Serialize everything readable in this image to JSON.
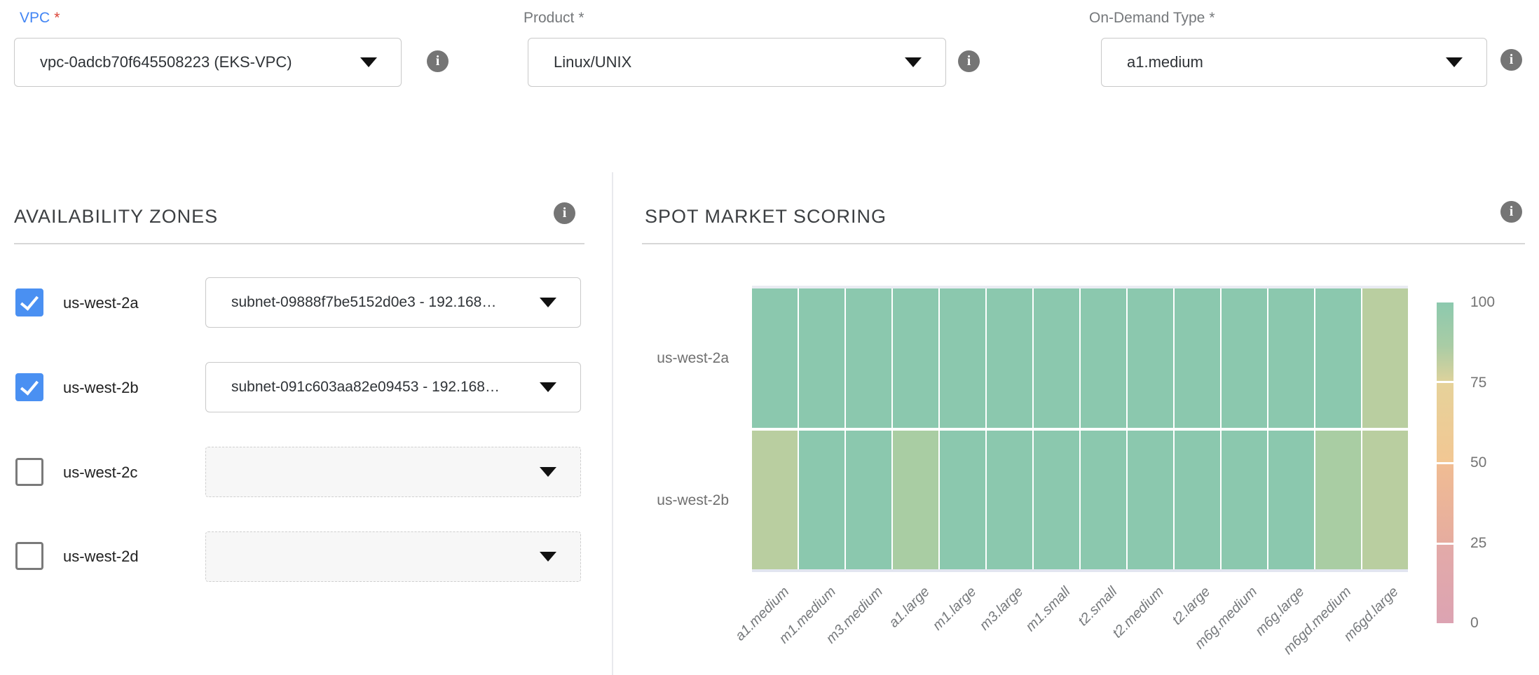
{
  "fields": {
    "vpc": {
      "label": "VPC",
      "required_mark": "*",
      "value": "vpc-0adcb70f645508223 (EKS-VPC)"
    },
    "product": {
      "label": "Product",
      "required_mark": "*",
      "value": "Linux/UNIX"
    },
    "on_demand_type": {
      "label": "On-Demand Type",
      "required_mark": "*",
      "value": "a1.medium"
    }
  },
  "availability_zones": {
    "title": "AVAILABILITY ZONES",
    "zones": [
      {
        "label": "us-west-2a",
        "checked": true,
        "subnet": "subnet-09888f7be5152d0e3 - 192.168…"
      },
      {
        "label": "us-west-2b",
        "checked": true,
        "subnet": "subnet-091c603aa82e09453 - 192.168…"
      },
      {
        "label": "us-west-2c",
        "checked": false,
        "subnet": ""
      },
      {
        "label": "us-west-2d",
        "checked": false,
        "subnet": ""
      }
    ]
  },
  "spot_market_scoring": {
    "title": "SPOT MARKET SCORING"
  },
  "colors": {
    "label_blue": "#4285f4",
    "required_red": "#db4437",
    "checkbox_blue": "#4a90f2",
    "score_high_teal": "#8BC8AE",
    "score_mid_green": "#A9CDA3",
    "score_low_olive": "#B9CEA0"
  },
  "chart_data": {
    "type": "heatmap",
    "title": "SPOT MARKET SCORING",
    "x_categories": [
      "a1.medium",
      "m1.medium",
      "m3.medium",
      "a1.large",
      "m1.large",
      "m3.large",
      "m1.small",
      "t2.small",
      "t2.medium",
      "t2.large",
      "m6g.medium",
      "m6g.large",
      "m6gd.medium",
      "m6gd.large"
    ],
    "y_categories": [
      "us-west-2a",
      "us-west-2b"
    ],
    "value_range": [
      0,
      100
    ],
    "grid": "white-separators",
    "legend_position": "right",
    "series": [
      {
        "name": "us-west-2a",
        "scores": [
          98,
          98,
          98,
          98,
          98,
          98,
          98,
          98,
          98,
          98,
          98,
          98,
          98,
          80
        ],
        "colors": [
          "#8BC8AE",
          "#8BC8AE",
          "#8BC8AE",
          "#8BC8AE",
          "#8BC8AE",
          "#8BC8AE",
          "#8BC8AE",
          "#8BC8AE",
          "#8BC8AE",
          "#8BC8AE",
          "#8BC8AE",
          "#8BC8AE",
          "#8BC8AE",
          "#B9CEA0"
        ]
      },
      {
        "name": "us-west-2b",
        "scores": [
          80,
          98,
          98,
          85,
          98,
          98,
          98,
          98,
          98,
          98,
          98,
          98,
          85,
          80
        ],
        "colors": [
          "#B9CEA0",
          "#8BC8AE",
          "#8BC8AE",
          "#A9CDA3",
          "#8BC8AE",
          "#8BC8AE",
          "#8BC8AE",
          "#8BC8AE",
          "#8BC8AE",
          "#8BC8AE",
          "#8BC8AE",
          "#8BC8AE",
          "#A9CDA3",
          "#B9CEA0"
        ]
      }
    ],
    "colorbar": {
      "tick_labels": [
        "100",
        "75",
        "50",
        "25",
        "0"
      ],
      "ticks": [
        100,
        75,
        50,
        25,
        0
      ],
      "stop_colors": [
        "#8CC9AE",
        "#DCD29C",
        "#F0BE93",
        "#E4ABA3",
        "#DCA3B2"
      ]
    }
  }
}
